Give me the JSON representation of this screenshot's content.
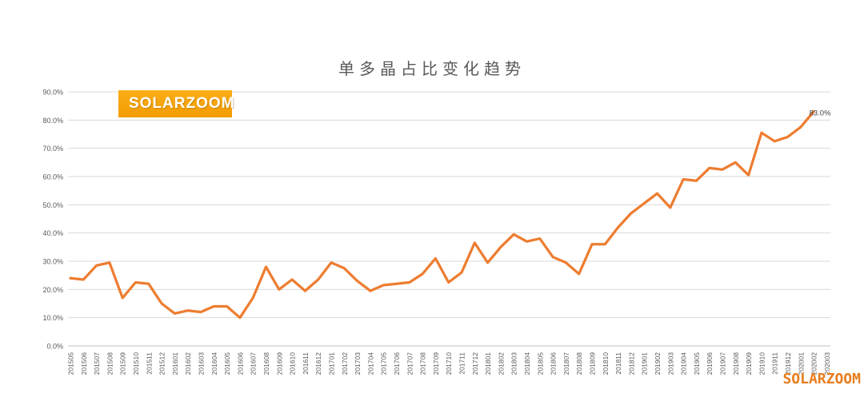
{
  "header": {
    "title": "单多晶占比变化趋势"
  },
  "logo": {
    "text": "SOLARZOOM",
    "bg_color": "#F5A800",
    "text_color": "#FFFFFF"
  },
  "watermark": {
    "text": "SOLARZOOM",
    "color": "#E87D1E"
  },
  "colors": {
    "line": "#ED7D31",
    "gridline": "#D9D9D9",
    "axis_line": "#C0C0C0",
    "axis_text": "#595959",
    "point_label": "#404040"
  },
  "chart_data": {
    "type": "line",
    "title": "单多晶占比变化趋势",
    "xlabel": "",
    "ylabel": "",
    "grid": true,
    "legend": "none",
    "ylim": [
      0,
      90
    ],
    "ytick_step": 10,
    "ytick_labels": [
      "0.0%",
      "10.0%",
      "20.0%",
      "30.0%",
      "40.0%",
      "50.0%",
      "60.0%",
      "70.0%",
      "80.0%",
      "90.0%"
    ],
    "categories": [
      "201505",
      "201506",
      "201507",
      "201508",
      "201509",
      "201510",
      "201511",
      "201512",
      "201601",
      "201602",
      "201603",
      "201604",
      "201605",
      "201606",
      "201607",
      "201608",
      "201609",
      "201610",
      "201611",
      "201612",
      "201701",
      "201702",
      "201703",
      "201704",
      "201705",
      "201706",
      "201707",
      "201708",
      "201709",
      "201710",
      "201711",
      "201712",
      "201801",
      "201802",
      "201803",
      "201804",
      "201805",
      "201806",
      "201807",
      "201808",
      "201809",
      "201810",
      "201811",
      "201812",
      "201901",
      "201902",
      "201903",
      "201904",
      "201905",
      "201906",
      "201907",
      "201908",
      "201909",
      "201910",
      "201911",
      "201912",
      "202001",
      "202002",
      "202003"
    ],
    "values": [
      24,
      23.5,
      28.5,
      29.5,
      17,
      22.5,
      22,
      15,
      11.5,
      12.5,
      12,
      14,
      14,
      10,
      17,
      28,
      20,
      23.5,
      19.5,
      23.5,
      29.5,
      27.5,
      23,
      19.5,
      21.5,
      22,
      22.5,
      25.5,
      31,
      22.5,
      26,
      36.5,
      29.5,
      35,
      39.5,
      37,
      38,
      31.5,
      29.5,
      25.5,
      36,
      36,
      42,
      47,
      50.5,
      54,
      49,
      59,
      58.5,
      63,
      62.5,
      65,
      60.5,
      75.5,
      72.5,
      74,
      77.5,
      83,
      null
    ],
    "last_point_label": "83.0%"
  }
}
